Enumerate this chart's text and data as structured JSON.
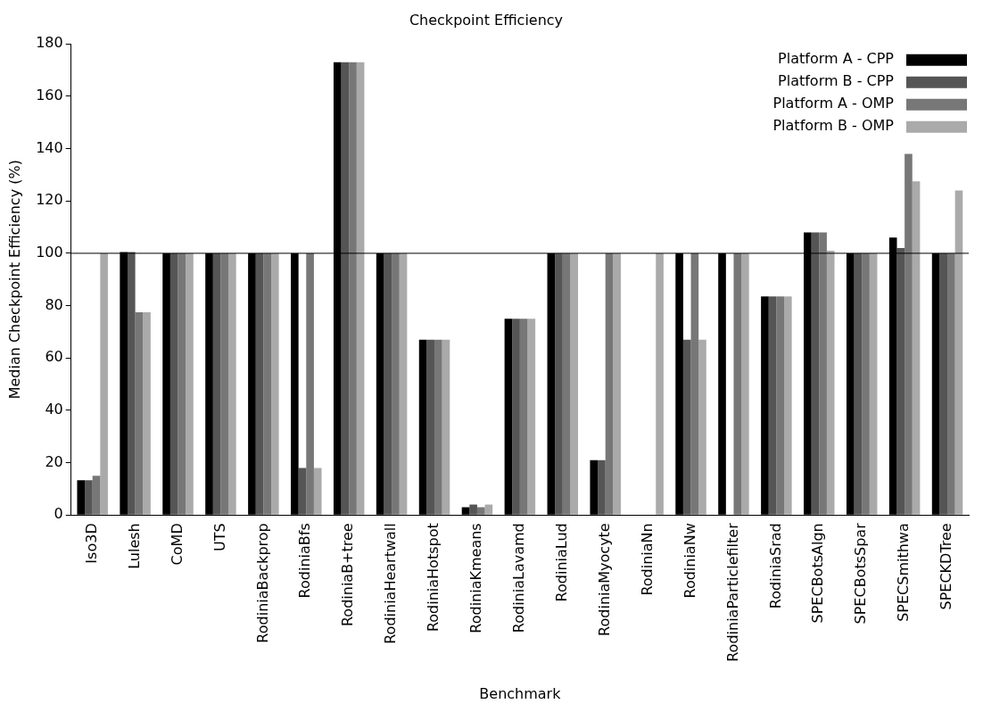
{
  "chart_data": {
    "type": "bar",
    "title": "Checkpoint Efficiency",
    "xlabel": "Benchmark",
    "ylabel": "Median Checkpoint Efficiency (%)",
    "categories": [
      "Iso3D",
      "Lulesh",
      "CoMD",
      "UTS",
      "RodiniaBackprop",
      "RodiniaBfs",
      "RodiniaB+tree",
      "RodiniaHeartwall",
      "RodiniaHotspot",
      "RodiniaKmeans",
      "RodiniaLavamd",
      "RodiniaLud",
      "RodiniaMyocyte",
      "RodiniaNn",
      "RodiniaNw",
      "RodiniaParticlefilter",
      "RodiniaSrad",
      "SPECBotsAlgn",
      "SPECBotsSpar",
      "SPECSmithwa",
      "SPECKDTree"
    ],
    "series": [
      {
        "name": "Platform A - CPP",
        "color": "#000000",
        "values": [
          13.3,
          100.5,
          100,
          100,
          100,
          100,
          173,
          100,
          67,
          3,
          75,
          100,
          21,
          0,
          100,
          100,
          83.5,
          108,
          100,
          106,
          100
        ]
      },
      {
        "name": "Platform B - CPP",
        "color": "#555555",
        "values": [
          13.3,
          100.5,
          100,
          100,
          100,
          18,
          173,
          100,
          67,
          4,
          75,
          100,
          21,
          0,
          67,
          0,
          83.5,
          108,
          100,
          102,
          100
        ]
      },
      {
        "name": "Platform A - OMP",
        "color": "#777777",
        "values": [
          15,
          77.5,
          100,
          100,
          100,
          100,
          173,
          100,
          67,
          3,
          75,
          100,
          100,
          0,
          100,
          100,
          83.5,
          108,
          100,
          138,
          100
        ]
      },
      {
        "name": "Platform B - OMP",
        "color": "#aaaaaa",
        "values": [
          100,
          77.5,
          100,
          100,
          100,
          18,
          173,
          100,
          67,
          4,
          75,
          100,
          100,
          100,
          67,
          100,
          83.5,
          101,
          100,
          127.5,
          124
        ]
      }
    ],
    "ylim": [
      0,
      180
    ],
    "yticks": [
      0,
      20,
      40,
      60,
      80,
      100,
      120,
      140,
      160,
      180
    ],
    "grid": false,
    "legend": "top right",
    "ref_lines": [
      {
        "axis": "y",
        "value": 100,
        "color": "#000000"
      }
    ]
  }
}
